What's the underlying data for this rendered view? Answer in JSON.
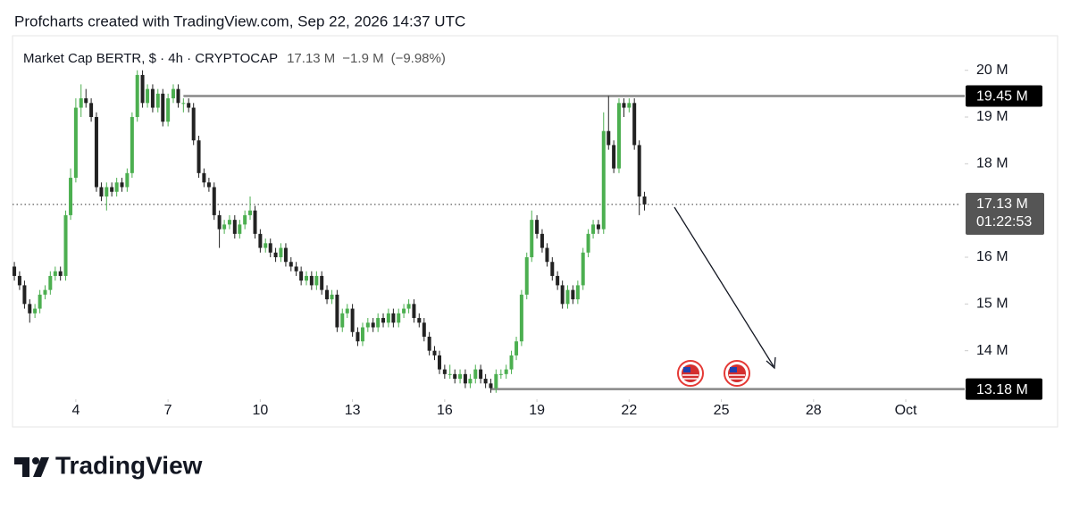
{
  "header": "Profcharts created with TradingView.com, Sep 22, 2026 14:37 UTC",
  "brand": "TradingView",
  "chart_data": {
    "type": "candlestick",
    "symbol": "Market Cap BERTR, $ · 4h · CRYPTOCAP",
    "last": {
      "value": 17.13,
      "label": "17.13 M"
    },
    "change": {
      "value": -1.9,
      "label": "−1.9 M"
    },
    "change_pct": {
      "value": -9.98,
      "label": "(−9.98%)"
    },
    "countdown": "01:22:53",
    "up_color": "#4caf50",
    "down_color": "#222222",
    "xlim": [
      1.94,
      32.8
    ],
    "ylim": [
      13.0,
      20.3
    ],
    "xticks": [
      4,
      7,
      10,
      13,
      16,
      19,
      22,
      25,
      28,
      {
        "value": 31,
        "label": "Oct"
      }
    ],
    "yticks": [
      {
        "value": 14,
        "label": "14 M"
      },
      {
        "value": 15,
        "label": "15 M"
      },
      {
        "value": 16,
        "label": "16 M"
      },
      {
        "value": 18,
        "label": "18 M"
      },
      {
        "value": 19,
        "label": "19 M"
      },
      {
        "value": 20,
        "label": "20 M"
      }
    ],
    "levels": [
      {
        "value": 19.45,
        "label": "19.45 M",
        "from": 7.5
      },
      {
        "value": 13.18,
        "label": "13.18 M",
        "from": 17.5
      }
    ],
    "x": [
      2,
      2.17,
      2.33,
      2.5,
      2.67,
      2.83,
      3,
      3.17,
      3.33,
      3.5,
      3.67,
      3.83,
      4,
      4.17,
      4.33,
      4.5,
      4.67,
      4.83,
      5,
      5.17,
      5.33,
      5.5,
      5.67,
      5.83,
      6,
      6.17,
      6.33,
      6.5,
      6.67,
      6.83,
      7,
      7.17,
      7.33,
      7.5,
      7.67,
      7.83,
      8,
      8.17,
      8.33,
      8.5,
      8.67,
      8.83,
      9,
      9.17,
      9.33,
      9.5,
      9.67,
      9.83,
      10,
      10.17,
      10.33,
      10.5,
      10.67,
      10.83,
      11,
      11.17,
      11.33,
      11.5,
      11.67,
      11.83,
      12,
      12.17,
      12.33,
      12.5,
      12.67,
      12.83,
      13,
      13.17,
      13.33,
      13.5,
      13.67,
      13.83,
      14,
      14.17,
      14.33,
      14.5,
      14.67,
      14.83,
      15,
      15.17,
      15.33,
      15.5,
      15.67,
      15.83,
      16,
      16.17,
      16.33,
      16.5,
      16.67,
      16.83,
      17,
      17.17,
      17.33,
      17.5,
      17.67,
      17.83,
      18,
      18.17,
      18.33,
      18.5,
      18.67,
      18.83,
      19,
      19.17,
      19.33,
      19.5,
      19.67,
      19.83,
      20,
      20.17,
      20.33,
      20.5,
      20.67,
      20.83,
      21,
      21.17,
      21.33,
      21.5,
      21.67,
      21.83,
      22,
      22.17,
      22.33,
      22.5
    ],
    "open": [
      15.8,
      15.6,
      15.4,
      15.0,
      14.8,
      14.9,
      15.2,
      15.3,
      15.6,
      15.7,
      15.6,
      16.9,
      17.7,
      19.2,
      19.4,
      19.3,
      19.0,
      17.5,
      17.3,
      17.5,
      17.4,
      17.6,
      17.5,
      17.8,
      19.0,
      19.9,
      19.3,
      19.6,
      19.2,
      19.5,
      18.9,
      19.4,
      19.6,
      19.3,
      19.3,
      19.2,
      18.5,
      17.8,
      17.6,
      17.5,
      16.9,
      16.6,
      16.7,
      16.8,
      16.5,
      16.7,
      16.9,
      17.0,
      16.5,
      16.2,
      16.3,
      16.1,
      16.0,
      16.2,
      15.9,
      15.8,
      15.7,
      15.5,
      15.6,
      15.4,
      15.6,
      15.3,
      15.1,
      15.2,
      14.5,
      14.8,
      14.9,
      14.4,
      14.2,
      14.5,
      14.6,
      14.5,
      14.7,
      14.6,
      14.8,
      14.6,
      14.8,
      14.9,
      15.0,
      14.7,
      14.6,
      14.3,
      14.0,
      13.9,
      13.6,
      13.5,
      13.5,
      13.4,
      13.5,
      13.3,
      13.4,
      13.6,
      13.4,
      13.3,
      13.2,
      13.5,
      13.5,
      13.6,
      13.9,
      14.2,
      15.2,
      16.0,
      16.8,
      16.5,
      16.2,
      15.9,
      15.6,
      15.4,
      15.0,
      15.3,
      15.1,
      15.4,
      16.1,
      16.5,
      16.7,
      16.6,
      18.7,
      18.4,
      17.9,
      19.3,
      19.2,
      19.3,
      18.4,
      17.3
    ],
    "high": [
      15.9,
      15.7,
      15.5,
      15.1,
      15.0,
      15.3,
      15.4,
      15.7,
      15.8,
      15.8,
      17.0,
      17.9,
      19.4,
      19.7,
      19.6,
      19.4,
      19.1,
      17.6,
      17.6,
      17.6,
      17.7,
      17.7,
      17.9,
      19.1,
      20.0,
      20.0,
      19.7,
      19.7,
      19.6,
      19.6,
      19.5,
      19.7,
      19.7,
      19.4,
      19.4,
      19.3,
      18.6,
      17.9,
      17.7,
      17.6,
      17.0,
      16.8,
      16.9,
      16.9,
      16.8,
      17.0,
      17.3,
      17.1,
      16.6,
      16.4,
      16.4,
      16.2,
      16.3,
      16.3,
      16.0,
      15.9,
      15.8,
      15.7,
      15.7,
      15.7,
      15.7,
      15.4,
      15.3,
      15.3,
      14.9,
      15.0,
      15.0,
      14.5,
      14.6,
      14.7,
      14.7,
      14.8,
      14.8,
      14.9,
      14.9,
      14.9,
      15.0,
      15.1,
      15.1,
      14.8,
      14.7,
      14.4,
      14.1,
      14.0,
      13.7,
      13.7,
      13.6,
      13.6,
      13.6,
      13.5,
      13.7,
      13.7,
      13.5,
      13.4,
      13.6,
      13.6,
      13.7,
      14.0,
      14.3,
      15.3,
      16.1,
      17.0,
      16.9,
      16.6,
      16.3,
      16.0,
      15.7,
      15.5,
      15.4,
      15.4,
      15.5,
      16.2,
      16.6,
      16.8,
      16.8,
      19.1,
      19.45,
      18.5,
      19.4,
      19.4,
      19.4,
      19.4,
      18.5,
      17.4
    ],
    "low": [
      15.5,
      15.3,
      14.9,
      14.6,
      14.7,
      14.8,
      15.1,
      15.2,
      15.5,
      15.5,
      15.5,
      16.8,
      17.6,
      19.0,
      19.2,
      18.9,
      17.4,
      17.2,
      17.0,
      17.3,
      17.3,
      17.4,
      17.4,
      17.7,
      18.9,
      19.2,
      19.2,
      19.1,
      19.1,
      18.8,
      18.8,
      19.3,
      19.2,
      19.1,
      19.1,
      18.4,
      17.7,
      17.5,
      17.4,
      16.8,
      16.2,
      16.5,
      16.6,
      16.4,
      16.4,
      16.6,
      16.8,
      16.4,
      16.1,
      16.1,
      16.0,
      15.9,
      15.9,
      15.8,
      15.7,
      15.6,
      15.4,
      15.4,
      15.3,
      15.3,
      15.2,
      15.0,
      15.0,
      14.4,
      14.4,
      14.7,
      14.3,
      14.1,
      14.1,
      14.4,
      14.4,
      14.4,
      14.5,
      14.5,
      14.5,
      14.5,
      14.7,
      14.8,
      14.6,
      14.5,
      14.2,
      13.9,
      13.8,
      13.5,
      13.4,
      13.4,
      13.3,
      13.3,
      13.2,
      13.2,
      13.3,
      13.3,
      13.2,
      13.1,
      13.1,
      13.4,
      13.4,
      13.5,
      13.8,
      14.1,
      15.1,
      15.9,
      16.4,
      16.1,
      15.8,
      15.5,
      15.3,
      14.9,
      14.9,
      15.0,
      15.0,
      15.3,
      16.0,
      16.4,
      16.5,
      16.5,
      18.3,
      17.8,
      17.8,
      19.0,
      19.1,
      18.3,
      16.9,
      17.0
    ],
    "close": [
      15.6,
      15.4,
      15.0,
      14.8,
      14.9,
      15.2,
      15.3,
      15.6,
      15.7,
      15.6,
      16.9,
      17.7,
      19.2,
      19.4,
      19.3,
      19.0,
      17.5,
      17.3,
      17.5,
      17.4,
      17.6,
      17.5,
      17.8,
      19.0,
      19.9,
      19.3,
      19.6,
      19.2,
      19.5,
      18.9,
      19.4,
      19.6,
      19.3,
      19.3,
      19.2,
      18.5,
      17.8,
      17.6,
      17.5,
      16.9,
      16.6,
      16.7,
      16.8,
      16.5,
      16.7,
      16.9,
      17.0,
      16.5,
      16.2,
      16.3,
      16.1,
      16.0,
      16.2,
      15.9,
      15.8,
      15.7,
      15.5,
      15.6,
      15.4,
      15.6,
      15.3,
      15.1,
      15.2,
      14.5,
      14.8,
      14.9,
      14.4,
      14.2,
      14.5,
      14.6,
      14.5,
      14.7,
      14.6,
      14.8,
      14.6,
      14.8,
      14.9,
      15.0,
      14.7,
      14.6,
      14.3,
      14.0,
      13.9,
      13.6,
      13.5,
      13.5,
      13.4,
      13.5,
      13.3,
      13.4,
      13.6,
      13.4,
      13.3,
      13.2,
      13.5,
      13.5,
      13.6,
      13.9,
      14.2,
      15.2,
      16.0,
      16.8,
      16.5,
      16.2,
      15.9,
      15.6,
      15.4,
      15.0,
      15.3,
      15.1,
      15.4,
      16.1,
      16.5,
      16.7,
      16.6,
      18.7,
      18.4,
      17.9,
      19.3,
      19.2,
      19.3,
      18.4,
      17.3,
      17.13
    ]
  }
}
